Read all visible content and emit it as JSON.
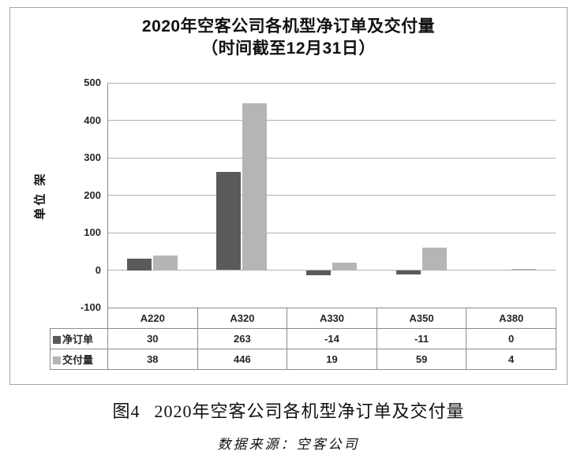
{
  "title": {
    "line1": "2020年空客公司各机型净订单及交付量",
    "line2": "（时间截至12月31日）"
  },
  "y_axis": {
    "label": "单位 架",
    "ticks": [
      500,
      400,
      300,
      200,
      100,
      0,
      -100
    ]
  },
  "chart_data": {
    "type": "bar",
    "title": "2020年空客公司各机型净订单及交付量（时间截至12月31日）",
    "categories": [
      "A220",
      "A320",
      "A330",
      "A350",
      "A380"
    ],
    "series": [
      {
        "name": "净订单",
        "color": "#5a5a5a",
        "values": [
          30,
          263,
          -14,
          -11,
          0
        ]
      },
      {
        "name": "交付量",
        "color": "#b5b5b5",
        "values": [
          38,
          446,
          19,
          59,
          4
        ]
      }
    ],
    "xlabel": "",
    "ylabel": "单位 架",
    "ylim": [
      -100,
      500
    ],
    "grid": true,
    "legend_position": "data-table-left",
    "colors": {
      "gridline": "#b0b0b0",
      "axis": "#8c8c8c",
      "table_border": "#8c8c8c"
    }
  },
  "caption": {
    "figure_label": "图4",
    "text": "2020年空客公司各机型净订单及交付量"
  },
  "source": "数据来源：空客公司"
}
